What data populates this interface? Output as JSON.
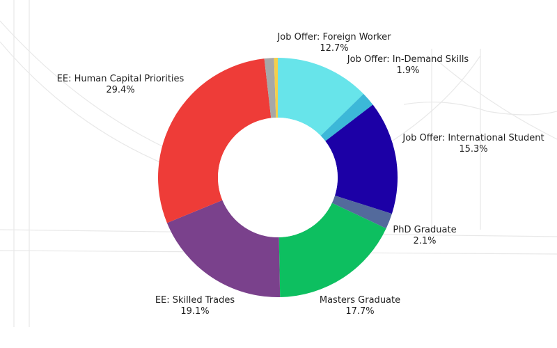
{
  "chart_data": {
    "type": "pie",
    "donut": true,
    "title": "",
    "slices": [
      {
        "label": "Job Offer: Foreign Worker",
        "value": 12.7,
        "value_label": "12.7%",
        "color": "#67e4ea"
      },
      {
        "label": "Job Offer: In-Demand Skills",
        "value": 1.9,
        "value_label": "1.9%",
        "color": "#3cb8d8"
      },
      {
        "label": "Job Offer: International Student",
        "value": 15.3,
        "value_label": "15.3%",
        "color": "#1c00a6"
      },
      {
        "label": "PhD Graduate",
        "value": 2.1,
        "value_label": "2.1%",
        "color": "#536a9c"
      },
      {
        "label": "Masters Graduate",
        "value": 17.7,
        "value_label": "17.7%",
        "color": "#0dbf60"
      },
      {
        "label": "EE: Skilled Trades",
        "value": 19.1,
        "value_label": "19.1%",
        "color": "#7a418c"
      },
      {
        "label": "EE: Human Capital Priorities",
        "value": 29.4,
        "value_label": "29.4%",
        "color": "#ee3c38"
      },
      {
        "label": "",
        "value": 1.3,
        "value_label": "",
        "color": "#a7a7a7"
      },
      {
        "label": "",
        "value": 0.5,
        "value_label": "",
        "color": "#f5cf4a"
      }
    ]
  }
}
